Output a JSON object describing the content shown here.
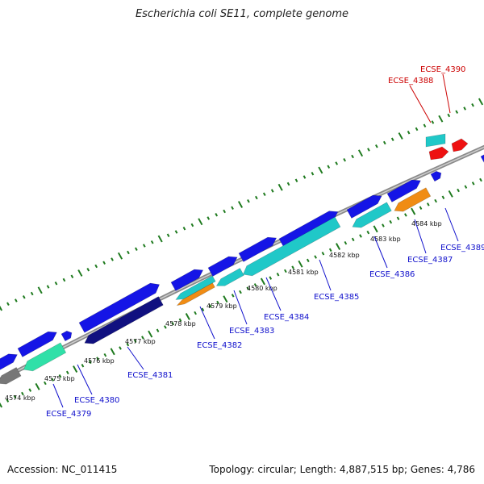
{
  "title": "Escherichia coli SE11, complete genome",
  "footer": {
    "accession": "Accession: NC_011415",
    "topology": "Topology: circular; Length: 4,887,515 bp; Genes: 4,786"
  },
  "colors": {
    "backbone": "#8a8a8a",
    "tick": "#1e7a1e",
    "label_blue": "#1010cc",
    "label_red": "#cc0000",
    "gene_blue": "#1515e6",
    "gene_navy": "#101080",
    "gene_cyan": "#20c8c8",
    "gene_teal": "#30e0a8",
    "gene_orange": "#f08c14",
    "gene_red": "#ee1111",
    "gene_gray": "#777777"
  },
  "map": {
    "kbp_labels": [
      {
        "text": "4574 kbp",
        "kbp": 4574
      },
      {
        "text": "4575 kbp",
        "kbp": 4575
      },
      {
        "text": "4576 kbp",
        "kbp": 4576
      },
      {
        "text": "4577 kbp",
        "kbp": 4577
      },
      {
        "text": "4578 kbp",
        "kbp": 4578
      },
      {
        "text": "4579 kbp",
        "kbp": 4579
      },
      {
        "text": "4580 kbp",
        "kbp": 4580
      },
      {
        "text": "4581 kbp",
        "kbp": 4581
      },
      {
        "text": "4582 kbp",
        "kbp": 4582
      },
      {
        "text": "4583 kbp",
        "kbp": 4583
      },
      {
        "text": "4584 kbp",
        "kbp": 4584
      }
    ],
    "gene_labels": [
      {
        "text": "ECSE_4379",
        "color": "blue"
      },
      {
        "text": "ECSE_4380",
        "color": "blue"
      },
      {
        "text": "ECSE_4381",
        "color": "blue"
      },
      {
        "text": "ECSE_4382",
        "color": "blue"
      },
      {
        "text": "ECSE_4383",
        "color": "blue"
      },
      {
        "text": "ECSE_4384",
        "color": "blue"
      },
      {
        "text": "ECSE_4385",
        "color": "blue"
      },
      {
        "text": "ECSE_4386",
        "color": "blue"
      },
      {
        "text": "ECSE_4387",
        "color": "blue"
      },
      {
        "text": "ECSE_4389",
        "color": "blue"
      },
      {
        "text": "ECSE_4388",
        "color": "red"
      },
      {
        "text": "ECSE_4390",
        "color": "red"
      }
    ]
  }
}
